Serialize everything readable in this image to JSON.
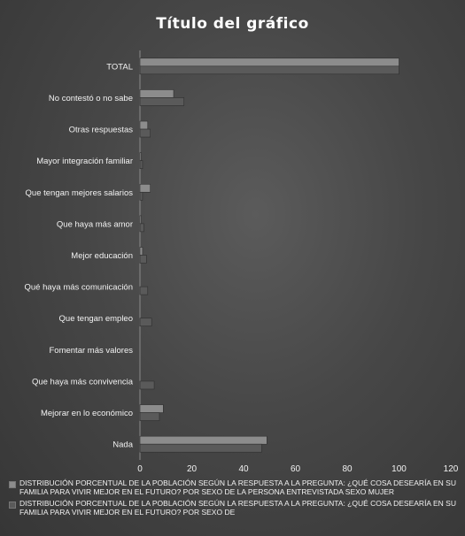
{
  "chart_data": {
    "type": "bar",
    "orientation": "horizontal",
    "title": "Título del gráfico",
    "categories": [
      "TOTAL",
      "No contestó  o no sabe",
      "Otras respuestas",
      "Mayor integración familiar",
      "Que tengan mejores salarios",
      "Que haya más amor",
      "Mejor educación",
      "Qué haya más comunicación",
      "Que tengan empleo",
      "Fomentar más valores",
      "Que haya más convivencia",
      "Mejorar en lo económico",
      "Nada"
    ],
    "series": [
      {
        "name": "DISTRIBUCIÓN PORCENTUAL DE LA POBLACIÓN SEGÚN LA RESPUESTA A  LA PREGUNTA: ¿QUÉ COSA DESEARÍA EN SU FAMILIA PARA VIVIR MEJOR EN EL FUTURO? POR SEXO DE LA PERSONA ENTREVISTADA SEXO MUJER",
        "color": "#8c8c8c",
        "values": [
          100,
          13,
          3,
          0.5,
          4,
          0.5,
          1,
          0,
          0,
          0,
          0,
          9,
          49
        ]
      },
      {
        "name": "DISTRIBUCIÓN PORCENTUAL DE LA POBLACIÓN SEGÚN LA RESPUESTA A  LA PREGUNTA: ¿QUÉ COSA DESEARÍA EN SU FAMILIA PARA VIVIR MEJOR EN EL FUTURO? POR SEXO DE",
        "color": "#5a5a5a",
        "values": [
          100,
          17,
          4,
          1,
          1,
          1.5,
          2.5,
          3,
          4.5,
          0,
          5.5,
          7.5,
          47
        ]
      }
    ],
    "xlim": [
      0,
      120
    ],
    "xticks": [
      "0",
      "20",
      "40",
      "60",
      "80",
      "100",
      "120"
    ],
    "legend_position": "bottom",
    "grid": false
  }
}
